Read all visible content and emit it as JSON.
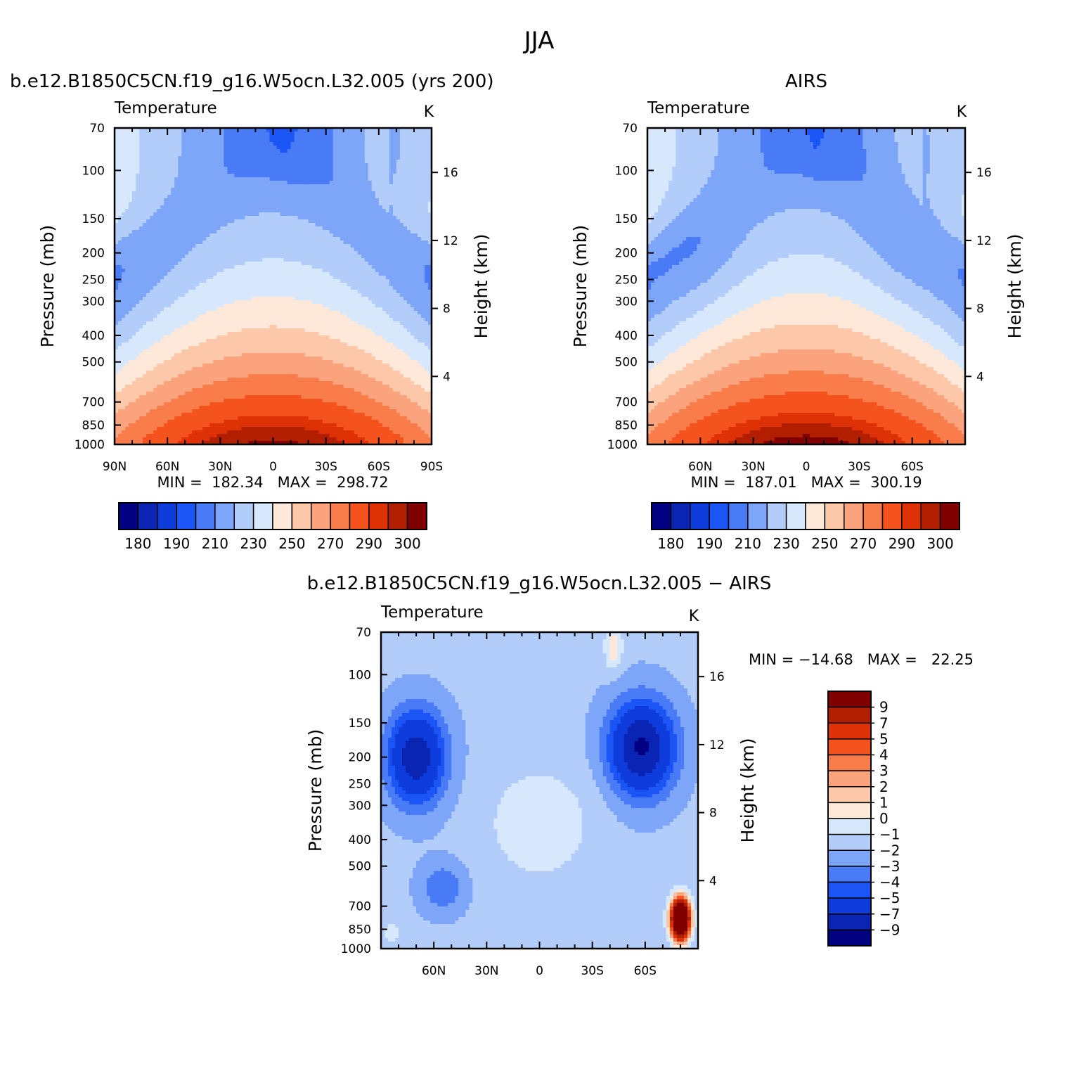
{
  "figure": {
    "title": "JJA",
    "variable": "Temperature",
    "units": "K",
    "ylabel_left": "Pressure (mb)",
    "ylabel_right": "Height (km)"
  },
  "chart_data": [
    {
      "type": "heatmap",
      "id": "model",
      "title": "b.e12.B1850C5CN.f19_g16.W5ocn.L32.005 (yrs 200)",
      "subtitle": "Temperature",
      "units": "K",
      "ylabel": "Pressure (mb)",
      "ylabel_right": "Height (km)",
      "xlim": [
        90,
        -90
      ],
      "x_ticks": [
        90,
        60,
        30,
        0,
        -30,
        -60,
        -90
      ],
      "x_tick_labels": [
        "90N",
        "60N",
        "30N",
        "0",
        "30S",
        "60S",
        "90S"
      ],
      "y_ticks": [
        70,
        100,
        150,
        200,
        250,
        300,
        400,
        500,
        700,
        850,
        1000
      ],
      "y_right_ticks": [
        4,
        8,
        12,
        16
      ],
      "stats_text": "MIN =  182.34   MAX =  298.72",
      "min": 182.34,
      "max": 298.72,
      "colorbar_labels": [
        "180",
        "190",
        "210",
        "230",
        "250",
        "270",
        "290",
        "300"
      ],
      "field": "model"
    },
    {
      "type": "heatmap",
      "id": "obs",
      "title": "AIRS",
      "subtitle": "Temperature",
      "units": "K",
      "ylabel": "Pressure (mb)",
      "ylabel_right": "Height (km)",
      "xlim": [
        90,
        -90
      ],
      "x_ticks": [
        60,
        30,
        0,
        -30,
        -60
      ],
      "x_tick_labels": [
        "60N",
        "30N",
        "0",
        "30S",
        "60S"
      ],
      "y_ticks": [
        70,
        100,
        150,
        200,
        250,
        300,
        400,
        500,
        700,
        850,
        1000
      ],
      "y_right_ticks": [
        4,
        8,
        12,
        16
      ],
      "stats_text": "MIN =  187.01   MAX =  300.19",
      "min": 187.01,
      "max": 300.19,
      "colorbar_labels": [
        "180",
        "190",
        "210",
        "230",
        "250",
        "270",
        "290",
        "300"
      ],
      "field": "obs"
    },
    {
      "type": "heatmap",
      "id": "diff",
      "title": "b.e12.B1850C5CN.f19_g16.W5ocn.L32.005 − AIRS",
      "subtitle": "Temperature",
      "units": "K",
      "ylabel": "Pressure (mb)",
      "ylabel_right": "Height (km)",
      "xlim": [
        90,
        -90
      ],
      "x_ticks": [
        60,
        30,
        0,
        -30,
        -60
      ],
      "x_tick_labels": [
        "60N",
        "30N",
        "0",
        "30S",
        "60S"
      ],
      "y_ticks": [
        70,
        100,
        150,
        200,
        250,
        300,
        400,
        500,
        700,
        850,
        1000
      ],
      "y_right_ticks": [
        4,
        8,
        12,
        16
      ],
      "stats_text": "MIN = −14.68   MAX =   22.25",
      "min": -14.68,
      "max": 22.25,
      "colorbar_labels": [
        "9",
        "7",
        "5",
        "4",
        "3",
        "2",
        "1",
        "0",
        "−1",
        "−2",
        "−3",
        "−4",
        "−5",
        "−7",
        "−9"
      ],
      "field": "diff"
    }
  ],
  "colors": {
    "palette14": [
      "#000080",
      "#0a24b4",
      "#0f3ddc",
      "#1b55f5",
      "#4a7bf7",
      "#7ea6f8",
      "#b3cdfb",
      "#d7e8fd",
      "#fde8d9",
      "#fcc8a9",
      "#fba37c",
      "#f97d4a",
      "#f5531e",
      "#de3106",
      "#b11e00",
      "#800000"
    ],
    "diff_colorbar": [
      "#800000",
      "#b11e00",
      "#de3106",
      "#f5531e",
      "#f97d4a",
      "#fba37c",
      "#fcc8a9",
      "#fde8d9",
      "#d7e8fd",
      "#b3cdfb",
      "#7ea6f8",
      "#4a7bf7",
      "#1b55f5",
      "#0f3ddc",
      "#0a24b4",
      "#000080"
    ]
  }
}
